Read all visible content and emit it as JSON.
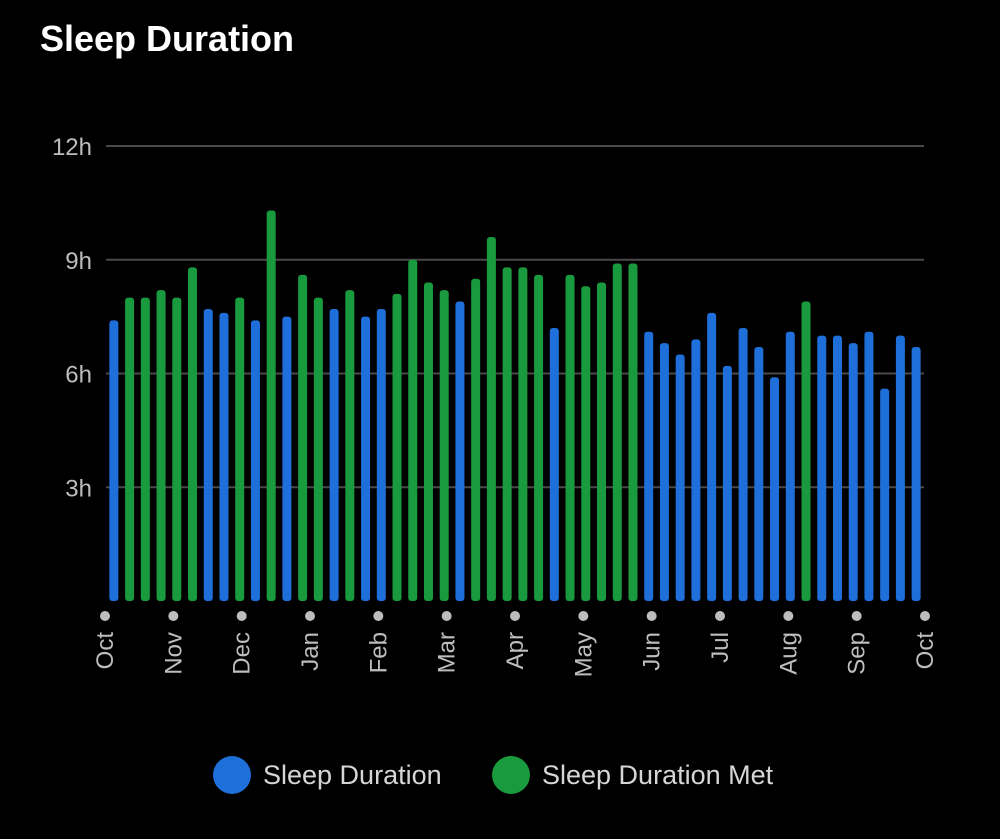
{
  "title": "Sleep Duration",
  "colors": {
    "background": "#000000",
    "sleep_duration": "#1e6fd9",
    "sleep_duration_met": "#1a9a3f",
    "grid": "#4a4a4a",
    "tick_text": "#bdbdbd",
    "dot": "#bdbdbd"
  },
  "legend": {
    "items": [
      {
        "label": "Sleep Duration",
        "color": "#1e6fd9"
      },
      {
        "label": "Sleep Duration Met",
        "color": "#1a9a3f"
      }
    ]
  },
  "chart_data": {
    "type": "bar",
    "title": "Sleep Duration",
    "xlabel": "",
    "ylabel": "",
    "ylim": [
      0,
      12
    ],
    "yticks": [
      {
        "value": 3,
        "label": "3h"
      },
      {
        "value": 6,
        "label": "6h"
      },
      {
        "value": 9,
        "label": "9h"
      },
      {
        "value": 12,
        "label": "12h"
      }
    ],
    "xticks": [
      "Oct",
      "Nov",
      "Dec",
      "Jan",
      "Feb",
      "Mar",
      "Apr",
      "May",
      "Jun",
      "Jul",
      "Aug",
      "Sep",
      "Oct"
    ],
    "grid": true,
    "legend_position": "bottom",
    "series": [
      {
        "name": "Sleep Duration",
        "color": "#1e6fd9"
      },
      {
        "name": "Sleep Duration Met",
        "color": "#1a9a3f"
      }
    ],
    "bars": [
      {
        "value": 7.4,
        "series": "Sleep Duration"
      },
      {
        "value": 8.0,
        "series": "Sleep Duration Met"
      },
      {
        "value": 8.0,
        "series": "Sleep Duration Met"
      },
      {
        "value": 8.2,
        "series": "Sleep Duration Met"
      },
      {
        "value": 8.0,
        "series": "Sleep Duration Met"
      },
      {
        "value": 8.8,
        "series": "Sleep Duration Met"
      },
      {
        "value": 7.7,
        "series": "Sleep Duration"
      },
      {
        "value": 7.6,
        "series": "Sleep Duration"
      },
      {
        "value": 8.0,
        "series": "Sleep Duration Met"
      },
      {
        "value": 7.4,
        "series": "Sleep Duration"
      },
      {
        "value": 10.3,
        "series": "Sleep Duration Met"
      },
      {
        "value": 7.5,
        "series": "Sleep Duration"
      },
      {
        "value": 8.6,
        "series": "Sleep Duration Met"
      },
      {
        "value": 8.0,
        "series": "Sleep Duration Met"
      },
      {
        "value": 7.7,
        "series": "Sleep Duration"
      },
      {
        "value": 8.2,
        "series": "Sleep Duration Met"
      },
      {
        "value": 7.5,
        "series": "Sleep Duration"
      },
      {
        "value": 7.7,
        "series": "Sleep Duration"
      },
      {
        "value": 8.1,
        "series": "Sleep Duration Met"
      },
      {
        "value": 9.0,
        "series": "Sleep Duration Met"
      },
      {
        "value": 8.4,
        "series": "Sleep Duration Met"
      },
      {
        "value": 8.2,
        "series": "Sleep Duration Met"
      },
      {
        "value": 7.9,
        "series": "Sleep Duration"
      },
      {
        "value": 8.5,
        "series": "Sleep Duration Met"
      },
      {
        "value": 9.6,
        "series": "Sleep Duration Met"
      },
      {
        "value": 8.8,
        "series": "Sleep Duration Met"
      },
      {
        "value": 8.8,
        "series": "Sleep Duration Met"
      },
      {
        "value": 8.6,
        "series": "Sleep Duration Met"
      },
      {
        "value": 7.2,
        "series": "Sleep Duration"
      },
      {
        "value": 8.6,
        "series": "Sleep Duration Met"
      },
      {
        "value": 8.3,
        "series": "Sleep Duration Met"
      },
      {
        "value": 8.4,
        "series": "Sleep Duration Met"
      },
      {
        "value": 8.9,
        "series": "Sleep Duration Met"
      },
      {
        "value": 8.9,
        "series": "Sleep Duration Met"
      },
      {
        "value": 7.1,
        "series": "Sleep Duration"
      },
      {
        "value": 6.8,
        "series": "Sleep Duration"
      },
      {
        "value": 6.5,
        "series": "Sleep Duration"
      },
      {
        "value": 6.9,
        "series": "Sleep Duration"
      },
      {
        "value": 7.6,
        "series": "Sleep Duration"
      },
      {
        "value": 6.2,
        "series": "Sleep Duration"
      },
      {
        "value": 7.2,
        "series": "Sleep Duration"
      },
      {
        "value": 6.7,
        "series": "Sleep Duration"
      },
      {
        "value": 5.9,
        "series": "Sleep Duration"
      },
      {
        "value": 7.1,
        "series": "Sleep Duration"
      },
      {
        "value": 7.9,
        "series": "Sleep Duration Met"
      },
      {
        "value": 7.0,
        "series": "Sleep Duration"
      },
      {
        "value": 7.0,
        "series": "Sleep Duration"
      },
      {
        "value": 6.8,
        "series": "Sleep Duration"
      },
      {
        "value": 7.1,
        "series": "Sleep Duration"
      },
      {
        "value": 5.6,
        "series": "Sleep Duration"
      },
      {
        "value": 7.0,
        "series": "Sleep Duration"
      },
      {
        "value": 6.7,
        "series": "Sleep Duration"
      }
    ]
  }
}
